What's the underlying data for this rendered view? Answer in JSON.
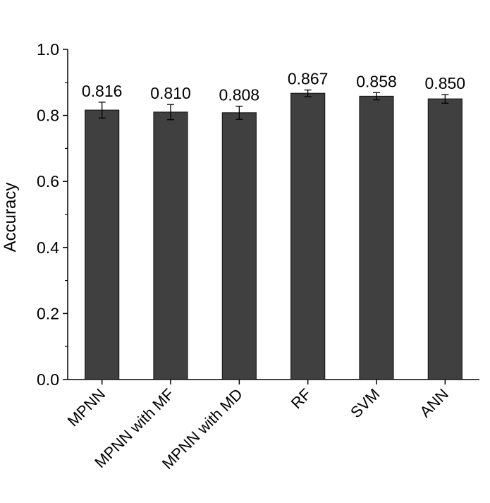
{
  "chart_data": {
    "type": "bar",
    "title": "",
    "xlabel": "",
    "ylabel": "Accuracy",
    "ylim": [
      0,
      1.0
    ],
    "yticks": [
      0.0,
      0.2,
      0.4,
      0.6,
      0.8,
      1.0
    ],
    "ytick_labels": [
      "0.0",
      "0.2",
      "0.4",
      "0.6",
      "0.8",
      "1.0"
    ],
    "categories": [
      "MPNN",
      "MPNN with MF",
      "MPNN with MD",
      "RF",
      "SVM",
      "ANN"
    ],
    "values": [
      0.816,
      0.81,
      0.808,
      0.867,
      0.858,
      0.85
    ],
    "value_labels": [
      "0.816",
      "0.810",
      "0.808",
      "0.867",
      "0.858",
      "0.850"
    ],
    "error": [
      0.024,
      0.023,
      0.02,
      0.01,
      0.011,
      0.013
    ],
    "grid": false,
    "colors": {
      "bar_fill": "#404040",
      "bar_stroke": "#1a1a1a",
      "axis": "#000000",
      "text": "#000000"
    }
  }
}
